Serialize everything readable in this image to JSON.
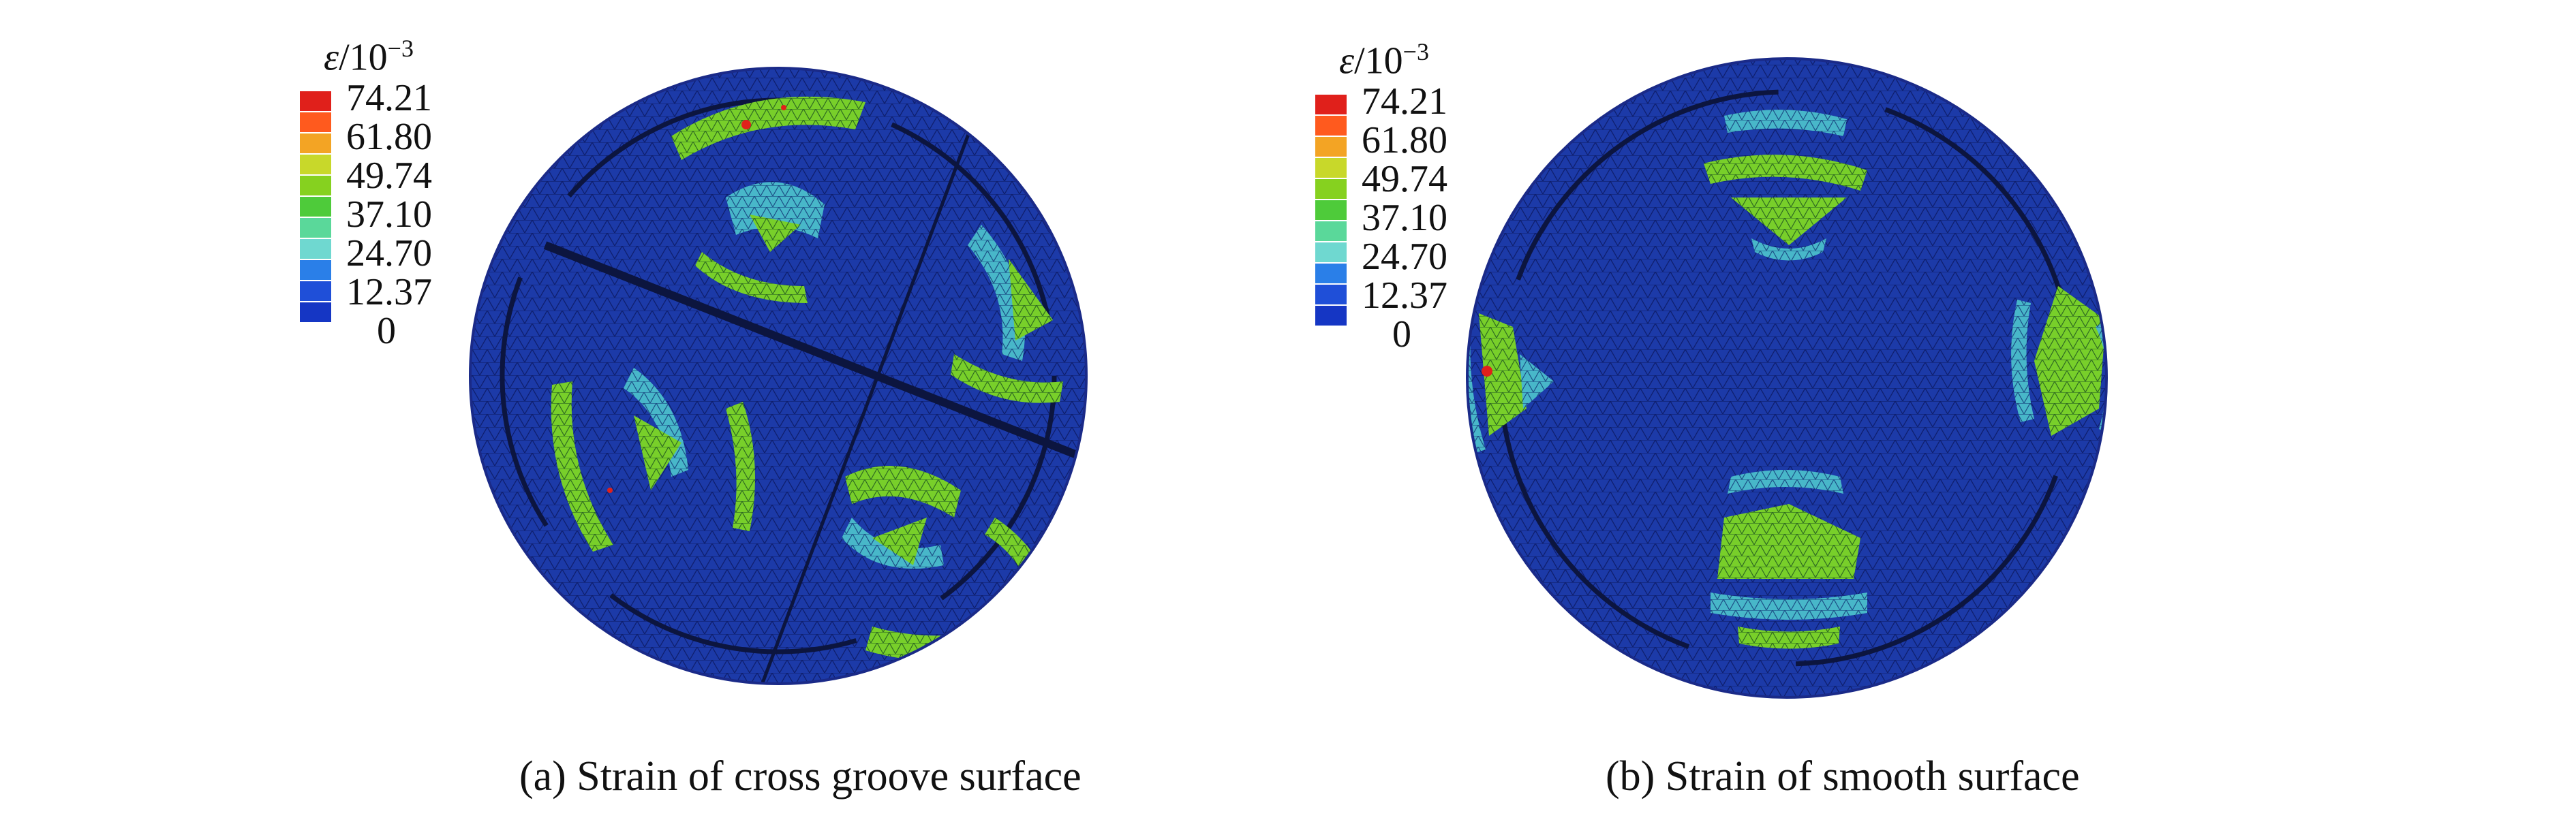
{
  "colorbar": {
    "title_symbol": "ε",
    "title_rest": "/10",
    "title_exp": "−3",
    "labels": [
      "74.21",
      "61.80",
      "49.74",
      "37.10",
      "24.70",
      "12.37",
      "0"
    ],
    "colors": [
      "#e0201b",
      "#ff5a1e",
      "#f3a424",
      "#c8d82a",
      "#86d11f",
      "#4ecb3a",
      "#5ad89a",
      "#6fd8d0",
      "#2a7fe8",
      "#1f4fd8",
      "#1536c4"
    ]
  },
  "panels": [
    {
      "id": "a",
      "caption": "(a) Strain of cross groove surface",
      "surface": "cross groove",
      "mesh_color": "#1a2e9a",
      "hot_color": "#86d11f",
      "peak_color": "#e0201b"
    },
    {
      "id": "b",
      "caption": "(b) Strain of smooth surface",
      "surface": "smooth",
      "mesh_color": "#1a2e9a",
      "hot_color": "#86d11f",
      "peak_color": "#e0201b"
    }
  ]
}
